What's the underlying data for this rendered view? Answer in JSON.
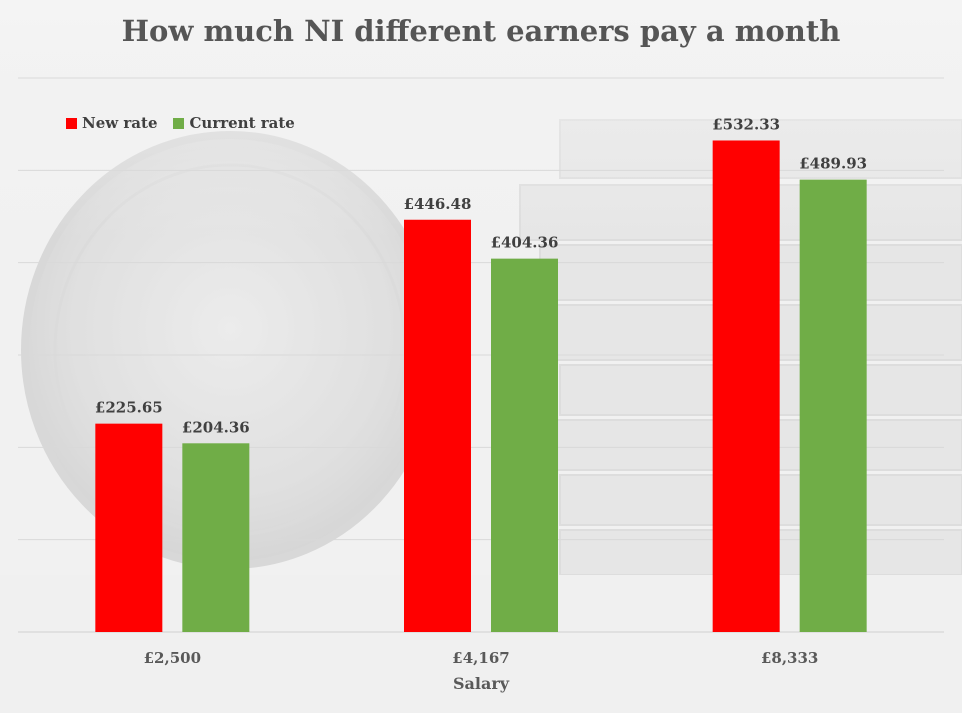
{
  "chart_data": {
    "type": "bar",
    "title": "How much NI different earners pay a month",
    "xlabel": "Salary",
    "ylabel": "",
    "categories": [
      "£2,500",
      "£4,167",
      "£8,333"
    ],
    "series": [
      {
        "name": "New rate",
        "color": "#ff0000",
        "values": [
          225.65,
          446.48,
          532.33
        ],
        "labels": [
          "£225.65",
          "£446.48",
          "£532.33"
        ]
      },
      {
        "name": "Current rate",
        "color": "#70ad47",
        "values": [
          204.36,
          404.36,
          489.93
        ],
        "labels": [
          "£204.36",
          "£404.36",
          "£489.93"
        ]
      }
    ],
    "ylim": [
      0,
      600
    ],
    "grid": true,
    "legend_position": "top-left"
  }
}
